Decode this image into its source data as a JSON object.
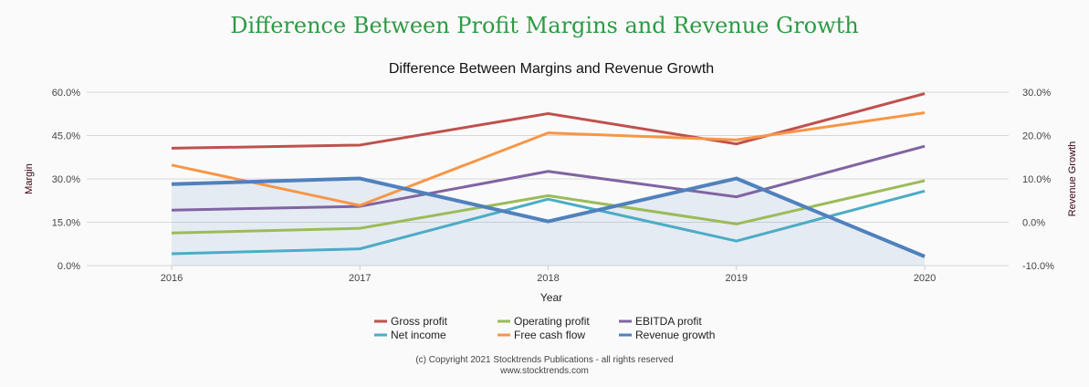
{
  "page_title": "Difference Between Profit Margins and Revenue Growth",
  "credits": [
    "(c) Copyright 2021 Stocktrends Publications - all rights reserved",
    "www.stocktrends.com"
  ],
  "chart_data": {
    "type": "line",
    "title": "Difference Between Margins and Revenue Growth",
    "xlabel": "Year",
    "ylabel": "Margin",
    "y2label": "Revenue Growth",
    "categories": [
      "2016",
      "2017",
      "2018",
      "2019",
      "2020"
    ],
    "ylim": [
      0,
      60
    ],
    "yticks": [
      "0.0%",
      "15.0%",
      "30.0%",
      "45.0%",
      "60.0%"
    ],
    "y2lim": [
      -10,
      30
    ],
    "y2ticks": [
      "-10.0%",
      "0.0%",
      "10.0%",
      "20.0%",
      "30.0%"
    ],
    "grid": true,
    "legend_position": "bottom",
    "series": [
      {
        "name": "Gross profit",
        "axis": "left",
        "color": "#c0504d",
        "values": [
          40.6,
          41.7,
          52.6,
          42.1,
          59.5
        ]
      },
      {
        "name": "Operating profit",
        "axis": "left",
        "color": "#9bbb59",
        "values": [
          11.3,
          12.9,
          24.2,
          14.4,
          29.4
        ]
      },
      {
        "name": "EBITDA profit",
        "axis": "left",
        "color": "#8064a2",
        "values": [
          19.2,
          20.5,
          32.6,
          23.8,
          41.3
        ]
      },
      {
        "name": "Net income",
        "axis": "left",
        "color": "#4bacc6",
        "values": [
          4.1,
          5.8,
          23.0,
          8.5,
          25.8
        ]
      },
      {
        "name": "Free cash flow",
        "axis": "left",
        "color": "#f79646",
        "values": [
          34.8,
          20.8,
          45.9,
          43.5,
          52.9
        ]
      },
      {
        "name": "Revenue growth",
        "axis": "right",
        "type": "area",
        "color": "#4f81bd",
        "values": [
          8.8,
          10.1,
          0.2,
          10.1,
          -7.9
        ]
      }
    ]
  }
}
